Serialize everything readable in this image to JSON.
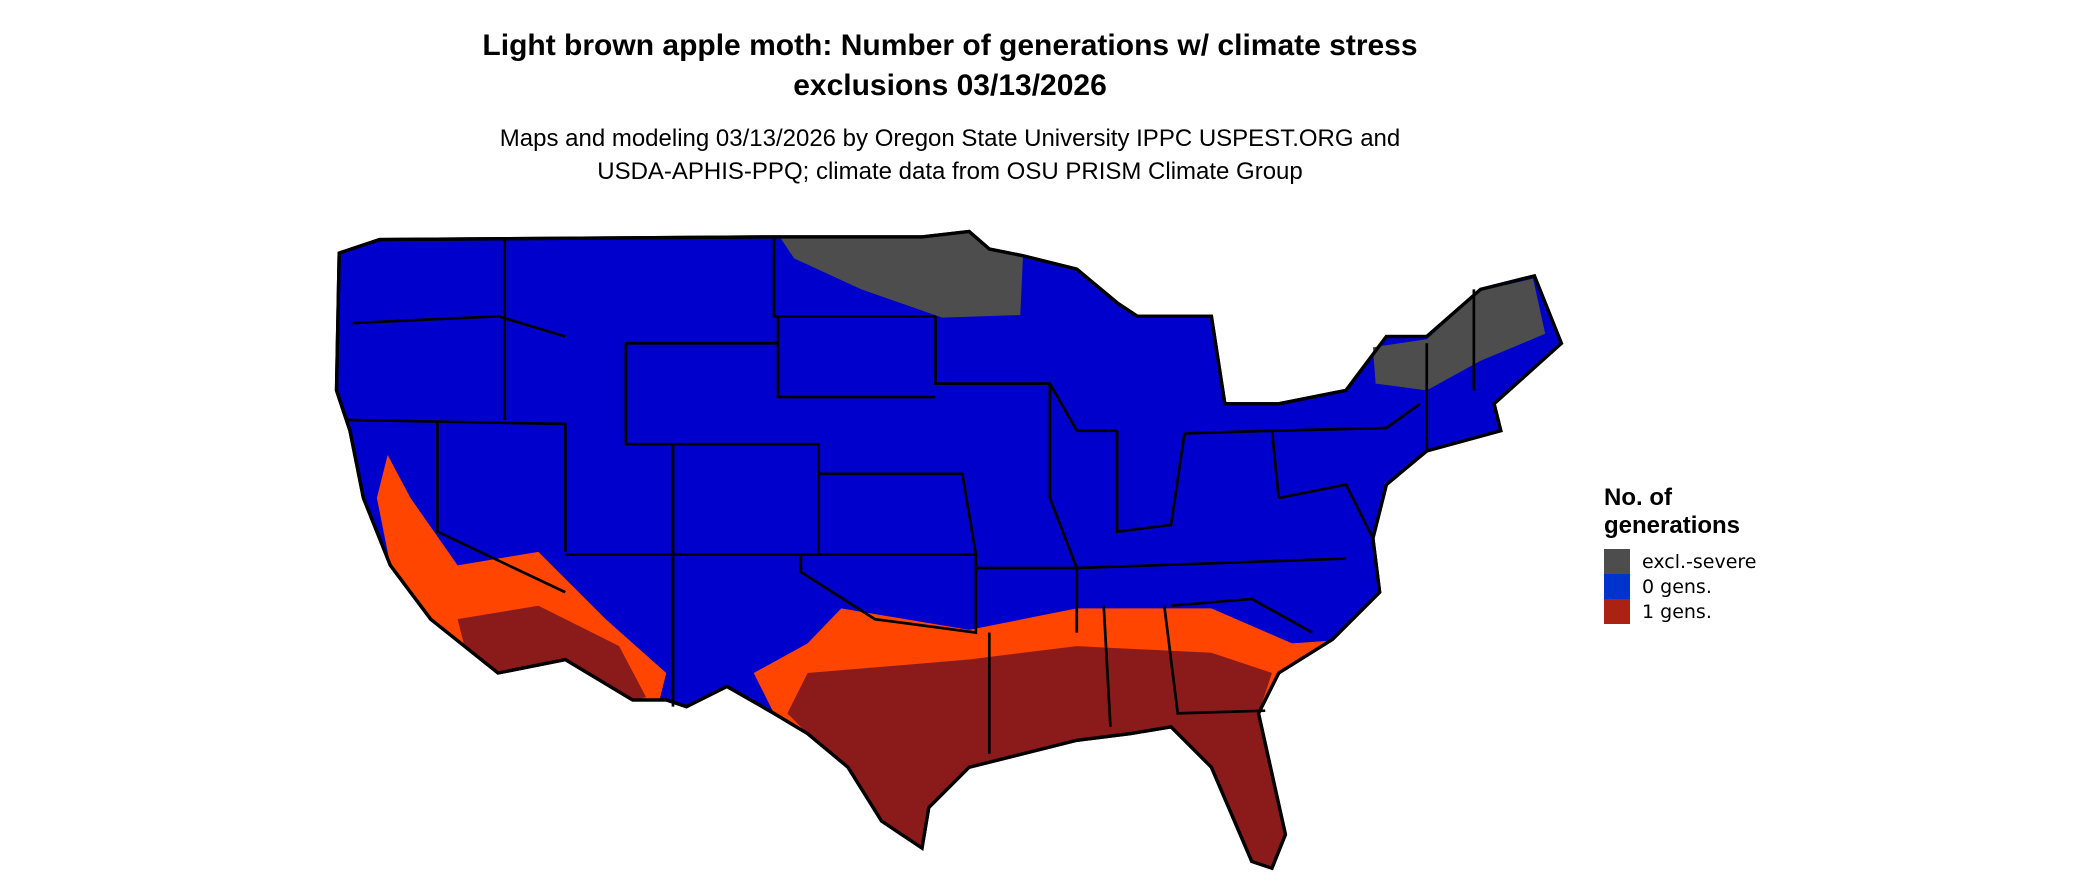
{
  "title": {
    "line1": "Light brown apple moth: Number of generations w/ climate stress",
    "line2": "exclusions 03/13/2026"
  },
  "subtitle": {
    "line1": "Maps and modeling 03/13/2026 by Oregon State University IPPC USPEST.ORG and",
    "line2": "USDA-APHIS-PPQ; climate data from OSU PRISM Climate Group"
  },
  "map": {
    "region": "Contiguous United States",
    "colors": {
      "excluded": "#4d4d4d",
      "zero": "#0000cd",
      "one_dark": "#8b1a1a",
      "one_light": "#ff4500",
      "border": "#000000"
    }
  },
  "legend": {
    "title_line1": "No. of",
    "title_line2": "generations",
    "items": [
      {
        "label": "excl.-severe",
        "color": "#4d4d4d"
      },
      {
        "label": "0 gens.",
        "color": "#0033cc"
      },
      {
        "label": "1 gens.",
        "color": "#aa2211"
      }
    ]
  }
}
